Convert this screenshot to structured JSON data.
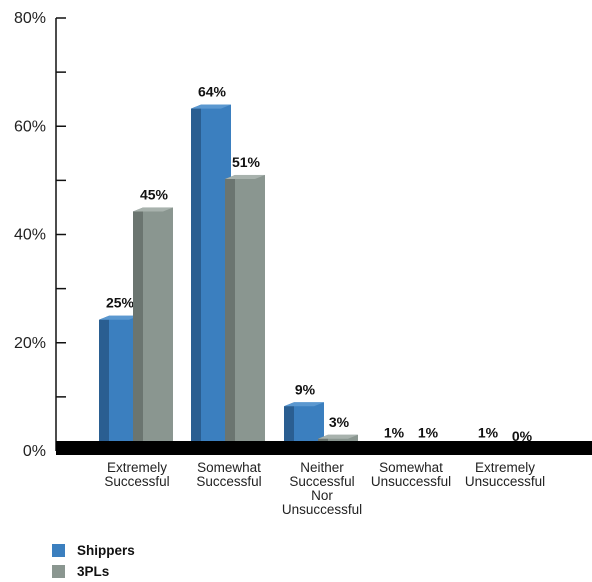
{
  "chart_data": {
    "type": "bar",
    "categories": [
      [
        "Extremely",
        "Successful"
      ],
      [
        "Somewhat",
        "Successful"
      ],
      [
        "Neither",
        "Successful",
        "Nor",
        "Unsuccessful"
      ],
      [
        "Somewhat",
        "Unsuccessful"
      ],
      [
        "Extremely",
        "Unsuccessful"
      ]
    ],
    "series": [
      {
        "name": "Shippers",
        "values": [
          25,
          64,
          9,
          1,
          1
        ],
        "labels": [
          "25%",
          "64%",
          "9%",
          "1%",
          "1%"
        ],
        "color": "#3b7fbf",
        "side_color": "#2a5e91",
        "top_color": "#5b98d0"
      },
      {
        "name": "3PLs",
        "values": [
          45,
          51,
          3,
          1,
          0
        ],
        "labels": [
          "45%",
          "51%",
          "3%",
          "1%",
          "0%"
        ],
        "color": "#8a9690",
        "side_color": "#6b7570",
        "top_color": "#a8b2ad"
      }
    ],
    "yticks": [
      "0%",
      "20%",
      "40%",
      "60%",
      "80%"
    ],
    "ylim": [
      0,
      80
    ],
    "legend_position": "bottom-left",
    "grid": false
  }
}
